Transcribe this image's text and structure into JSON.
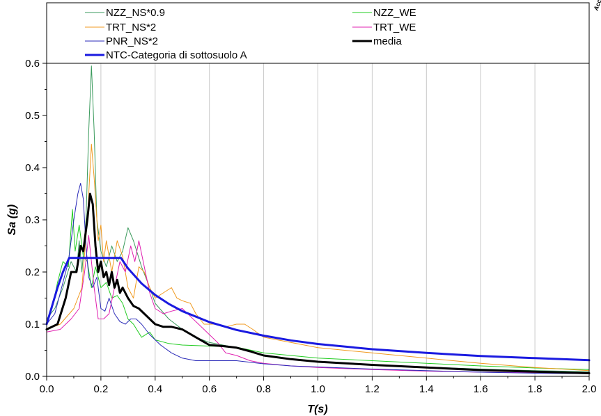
{
  "chart_data": {
    "type": "line",
    "xlabel": "T(s)",
    "ylabel": "Sa (g)",
    "xlim": [
      0,
      2.0
    ],
    "ylim": [
      0,
      0.6
    ],
    "x_ticks": [
      "0.0",
      "0.2",
      "0.4",
      "0.6",
      "0.8",
      "1.0",
      "1.2",
      "1.4",
      "1.6",
      "1.8",
      "2.0"
    ],
    "y_ticks": [
      "0.0",
      "0.1",
      "0.2",
      "0.3",
      "0.4",
      "0.5",
      "0.6"
    ],
    "grid": "vertical",
    "legend_placement": "top",
    "corner_label": "Acc",
    "series": [
      {
        "name": "NZZ_NS*0.9",
        "color": "#3a9a5c",
        "width": 1,
        "points": [
          [
            0,
            0.11
          ],
          [
            0.03,
            0.13
          ],
          [
            0.06,
            0.17
          ],
          [
            0.09,
            0.22
          ],
          [
            0.11,
            0.2
          ],
          [
            0.12,
            0.26
          ],
          [
            0.13,
            0.2
          ],
          [
            0.145,
            0.3
          ],
          [
            0.155,
            0.47
          ],
          [
            0.165,
            0.595
          ],
          [
            0.175,
            0.47
          ],
          [
            0.185,
            0.3
          ],
          [
            0.2,
            0.24
          ],
          [
            0.22,
            0.21
          ],
          [
            0.24,
            0.25
          ],
          [
            0.26,
            0.22
          ],
          [
            0.28,
            0.24
          ],
          [
            0.3,
            0.285
          ],
          [
            0.32,
            0.26
          ],
          [
            0.35,
            0.21
          ],
          [
            0.38,
            0.17
          ],
          [
            0.4,
            0.14
          ],
          [
            0.45,
            0.11
          ],
          [
            0.5,
            0.09
          ],
          [
            0.55,
            0.075
          ],
          [
            0.6,
            0.065
          ],
          [
            0.7,
            0.055
          ],
          [
            0.8,
            0.04
          ],
          [
            0.9,
            0.033
          ],
          [
            1.0,
            0.028
          ],
          [
            1.2,
            0.022
          ],
          [
            1.4,
            0.018
          ],
          [
            1.6,
            0.014
          ],
          [
            1.8,
            0.011
          ],
          [
            2.0,
            0.009
          ]
        ]
      },
      {
        "name": "NZZ_WE",
        "color": "#22cc22",
        "width": 1,
        "points": [
          [
            0,
            0.1
          ],
          [
            0.02,
            0.13
          ],
          [
            0.04,
            0.18
          ],
          [
            0.06,
            0.22
          ],
          [
            0.08,
            0.21
          ],
          [
            0.095,
            0.32
          ],
          [
            0.105,
            0.24
          ],
          [
            0.12,
            0.29
          ],
          [
            0.135,
            0.23
          ],
          [
            0.15,
            0.22
          ],
          [
            0.165,
            0.17
          ],
          [
            0.18,
            0.21
          ],
          [
            0.2,
            0.17
          ],
          [
            0.22,
            0.18
          ],
          [
            0.24,
            0.15
          ],
          [
            0.26,
            0.155
          ],
          [
            0.28,
            0.14
          ],
          [
            0.3,
            0.11
          ],
          [
            0.32,
            0.1
          ],
          [
            0.35,
            0.075
          ],
          [
            0.38,
            0.085
          ],
          [
            0.4,
            0.07
          ],
          [
            0.45,
            0.063
          ],
          [
            0.5,
            0.06
          ],
          [
            0.6,
            0.058
          ],
          [
            0.7,
            0.056
          ],
          [
            0.8,
            0.045
          ],
          [
            0.9,
            0.04
          ],
          [
            1.0,
            0.035
          ],
          [
            1.2,
            0.03
          ],
          [
            1.4,
            0.025
          ],
          [
            1.6,
            0.02
          ],
          [
            1.8,
            0.016
          ],
          [
            2.0,
            0.013
          ]
        ]
      },
      {
        "name": "TRT_NS*2",
        "color": "#f09a20",
        "width": 1,
        "points": [
          [
            0,
            0.09
          ],
          [
            0.05,
            0.1
          ],
          [
            0.1,
            0.13
          ],
          [
            0.13,
            0.17
          ],
          [
            0.15,
            0.3
          ],
          [
            0.165,
            0.445
          ],
          [
            0.175,
            0.38
          ],
          [
            0.19,
            0.26
          ],
          [
            0.2,
            0.29
          ],
          [
            0.21,
            0.22
          ],
          [
            0.22,
            0.26
          ],
          [
            0.24,
            0.2
          ],
          [
            0.26,
            0.26
          ],
          [
            0.28,
            0.23
          ],
          [
            0.3,
            0.17
          ],
          [
            0.32,
            0.15
          ],
          [
            0.34,
            0.21
          ],
          [
            0.36,
            0.2
          ],
          [
            0.38,
            0.17
          ],
          [
            0.4,
            0.15
          ],
          [
            0.43,
            0.16
          ],
          [
            0.46,
            0.17
          ],
          [
            0.48,
            0.15
          ],
          [
            0.5,
            0.145
          ],
          [
            0.53,
            0.14
          ],
          [
            0.55,
            0.12
          ],
          [
            0.58,
            0.1
          ],
          [
            0.62,
            0.1
          ],
          [
            0.66,
            0.095
          ],
          [
            0.7,
            0.1
          ],
          [
            0.73,
            0.1
          ],
          [
            0.76,
            0.09
          ],
          [
            0.8,
            0.075
          ],
          [
            0.9,
            0.065
          ],
          [
            1.0,
            0.055
          ],
          [
            1.2,
            0.045
          ],
          [
            1.4,
            0.035
          ],
          [
            1.6,
            0.025
          ],
          [
            1.8,
            0.017
          ],
          [
            2.0,
            0.011
          ]
        ]
      },
      {
        "name": "TRT_WE",
        "color": "#e020b0",
        "width": 1,
        "points": [
          [
            0,
            0.085
          ],
          [
            0.05,
            0.09
          ],
          [
            0.09,
            0.11
          ],
          [
            0.12,
            0.13
          ],
          [
            0.14,
            0.2
          ],
          [
            0.155,
            0.27
          ],
          [
            0.165,
            0.22
          ],
          [
            0.175,
            0.17
          ],
          [
            0.19,
            0.11
          ],
          [
            0.21,
            0.11
          ],
          [
            0.23,
            0.12
          ],
          [
            0.25,
            0.17
          ],
          [
            0.27,
            0.22
          ],
          [
            0.29,
            0.2
          ],
          [
            0.31,
            0.25
          ],
          [
            0.325,
            0.22
          ],
          [
            0.34,
            0.26
          ],
          [
            0.36,
            0.21
          ],
          [
            0.38,
            0.16
          ],
          [
            0.4,
            0.13
          ],
          [
            0.43,
            0.12
          ],
          [
            0.46,
            0.125
          ],
          [
            0.5,
            0.13
          ],
          [
            0.53,
            0.115
          ],
          [
            0.56,
            0.1
          ],
          [
            0.6,
            0.08
          ],
          [
            0.63,
            0.065
          ],
          [
            0.66,
            0.045
          ],
          [
            0.7,
            0.04
          ],
          [
            0.75,
            0.03
          ],
          [
            0.8,
            0.025
          ],
          [
            0.9,
            0.02
          ],
          [
            1.0,
            0.017
          ],
          [
            1.2,
            0.013
          ],
          [
            1.4,
            0.01
          ],
          [
            1.6,
            0.008
          ],
          [
            1.8,
            0.007
          ],
          [
            2.0,
            0.006
          ]
        ]
      },
      {
        "name": "PNR_NS*2",
        "color": "#2a2ab8",
        "width": 1,
        "points": [
          [
            0,
            0.1
          ],
          [
            0.03,
            0.12
          ],
          [
            0.06,
            0.18
          ],
          [
            0.08,
            0.22
          ],
          [
            0.1,
            0.3
          ],
          [
            0.115,
            0.35
          ],
          [
            0.125,
            0.37
          ],
          [
            0.135,
            0.34
          ],
          [
            0.145,
            0.25
          ],
          [
            0.155,
            0.19
          ],
          [
            0.17,
            0.17
          ],
          [
            0.185,
            0.19
          ],
          [
            0.2,
            0.13
          ],
          [
            0.215,
            0.125
          ],
          [
            0.23,
            0.15
          ],
          [
            0.25,
            0.12
          ],
          [
            0.27,
            0.105
          ],
          [
            0.29,
            0.1
          ],
          [
            0.31,
            0.11
          ],
          [
            0.33,
            0.11
          ],
          [
            0.35,
            0.1
          ],
          [
            0.38,
            0.08
          ],
          [
            0.42,
            0.06
          ],
          [
            0.46,
            0.045
          ],
          [
            0.5,
            0.035
          ],
          [
            0.55,
            0.03
          ],
          [
            0.6,
            0.03
          ],
          [
            0.7,
            0.03
          ],
          [
            0.8,
            0.024
          ],
          [
            0.9,
            0.02
          ],
          [
            1.0,
            0.018
          ],
          [
            1.2,
            0.014
          ],
          [
            1.4,
            0.011
          ],
          [
            1.6,
            0.008
          ],
          [
            1.8,
            0.006
          ],
          [
            2.0,
            0.005
          ]
        ]
      },
      {
        "name": "media",
        "color": "#000000",
        "width": 3,
        "points": [
          [
            0,
            0.09
          ],
          [
            0.04,
            0.1
          ],
          [
            0.07,
            0.15
          ],
          [
            0.09,
            0.2
          ],
          [
            0.11,
            0.2
          ],
          [
            0.125,
            0.25
          ],
          [
            0.135,
            0.24
          ],
          [
            0.15,
            0.3
          ],
          [
            0.16,
            0.35
          ],
          [
            0.17,
            0.33
          ],
          [
            0.18,
            0.25
          ],
          [
            0.19,
            0.2
          ],
          [
            0.2,
            0.22
          ],
          [
            0.21,
            0.19
          ],
          [
            0.22,
            0.2
          ],
          [
            0.23,
            0.175
          ],
          [
            0.24,
            0.2
          ],
          [
            0.25,
            0.17
          ],
          [
            0.26,
            0.185
          ],
          [
            0.27,
            0.16
          ],
          [
            0.28,
            0.17
          ],
          [
            0.3,
            0.15
          ],
          [
            0.32,
            0.135
          ],
          [
            0.34,
            0.13
          ],
          [
            0.36,
            0.12
          ],
          [
            0.38,
            0.11
          ],
          [
            0.4,
            0.1
          ],
          [
            0.43,
            0.095
          ],
          [
            0.46,
            0.095
          ],
          [
            0.5,
            0.09
          ],
          [
            0.55,
            0.075
          ],
          [
            0.6,
            0.06
          ],
          [
            0.65,
            0.058
          ],
          [
            0.7,
            0.055
          ],
          [
            0.75,
            0.048
          ],
          [
            0.8,
            0.04
          ],
          [
            0.9,
            0.033
          ],
          [
            1.0,
            0.028
          ],
          [
            1.2,
            0.022
          ],
          [
            1.4,
            0.017
          ],
          [
            1.6,
            0.012
          ],
          [
            1.8,
            0.009
          ],
          [
            2.0,
            0.006
          ]
        ]
      },
      {
        "name": "NTC-Categoria di sottosuolo A",
        "color": "#1a1ae0",
        "width": 3,
        "points": [
          [
            0,
            0.1
          ],
          [
            0.02,
            0.135
          ],
          [
            0.04,
            0.17
          ],
          [
            0.06,
            0.2
          ],
          [
            0.083,
            0.227
          ],
          [
            0.12,
            0.227
          ],
          [
            0.2,
            0.227
          ],
          [
            0.274,
            0.227
          ],
          [
            0.3,
            0.207
          ],
          [
            0.35,
            0.178
          ],
          [
            0.4,
            0.156
          ],
          [
            0.45,
            0.139
          ],
          [
            0.5,
            0.125
          ],
          [
            0.6,
            0.104
          ],
          [
            0.7,
            0.089
          ],
          [
            0.8,
            0.078
          ],
          [
            0.9,
            0.069
          ],
          [
            1.0,
            0.062
          ],
          [
            1.2,
            0.052
          ],
          [
            1.4,
            0.045
          ],
          [
            1.6,
            0.039
          ],
          [
            1.8,
            0.035
          ],
          [
            2.0,
            0.031
          ]
        ]
      }
    ]
  }
}
